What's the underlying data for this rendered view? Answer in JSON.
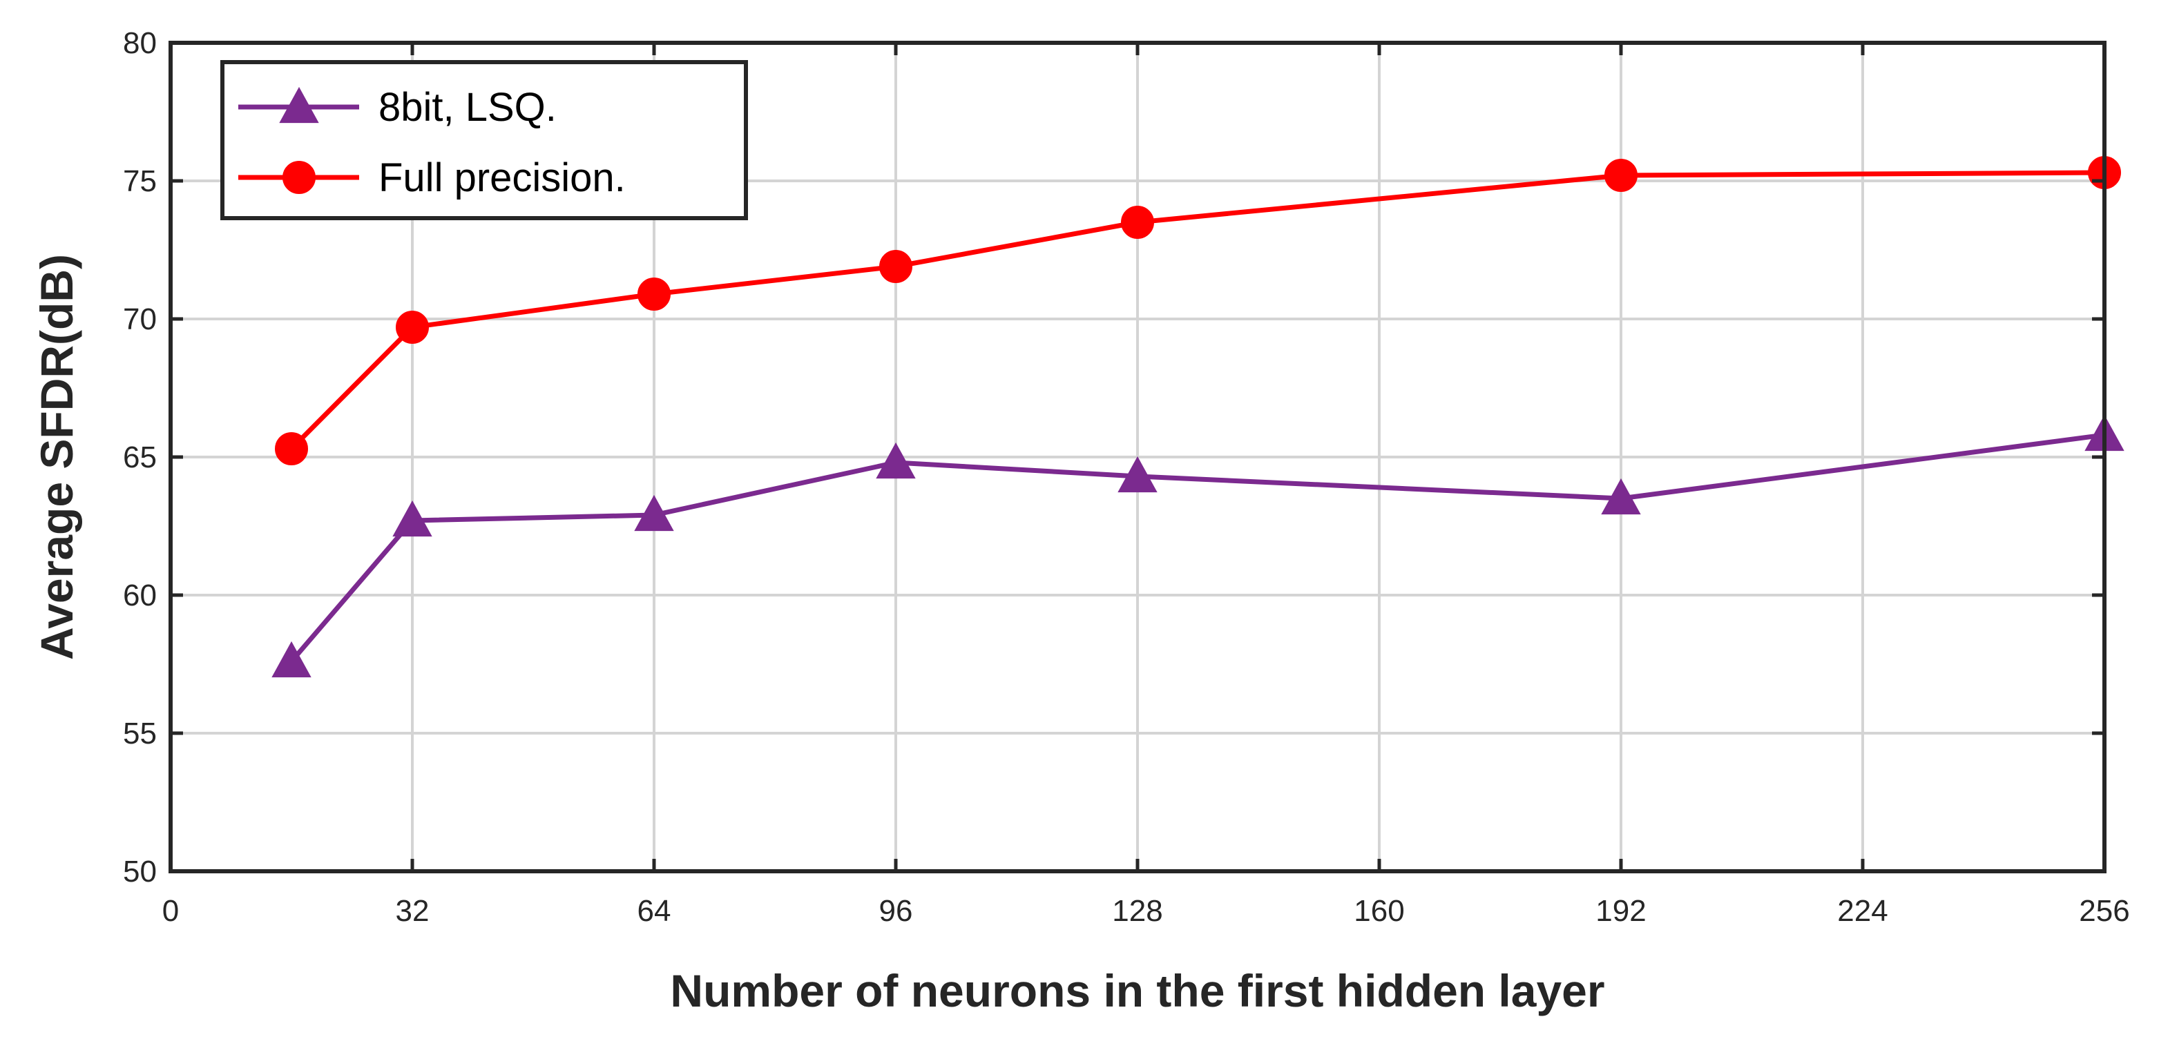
{
  "chart_data": {
    "type": "line",
    "title": "",
    "xlabel": "Number of neurons in the first hidden layer",
    "ylabel": "Average SFDR(dB)",
    "xlim": [
      0,
      256
    ],
    "ylim": [
      50,
      80
    ],
    "x_ticks": [
      0,
      32,
      64,
      96,
      128,
      160,
      192,
      224,
      256
    ],
    "y_ticks": [
      50,
      55,
      60,
      65,
      70,
      75,
      80
    ],
    "grid": true,
    "legend_position": "top-left",
    "series": [
      {
        "name": "8bit, LSQ.",
        "color": "#7B2A8F",
        "marker": "triangle",
        "x": [
          16,
          32,
          64,
          96,
          128,
          192,
          256
        ],
        "y": [
          57.6,
          62.7,
          62.9,
          64.8,
          64.3,
          63.5,
          65.8
        ]
      },
      {
        "name": "Full precision.",
        "color": "#FF0000",
        "marker": "circle",
        "x": [
          16,
          32,
          64,
          96,
          128,
          192,
          256
        ],
        "y": [
          65.3,
          69.7,
          70.9,
          71.9,
          73.5,
          75.2,
          75.3
        ]
      }
    ]
  }
}
